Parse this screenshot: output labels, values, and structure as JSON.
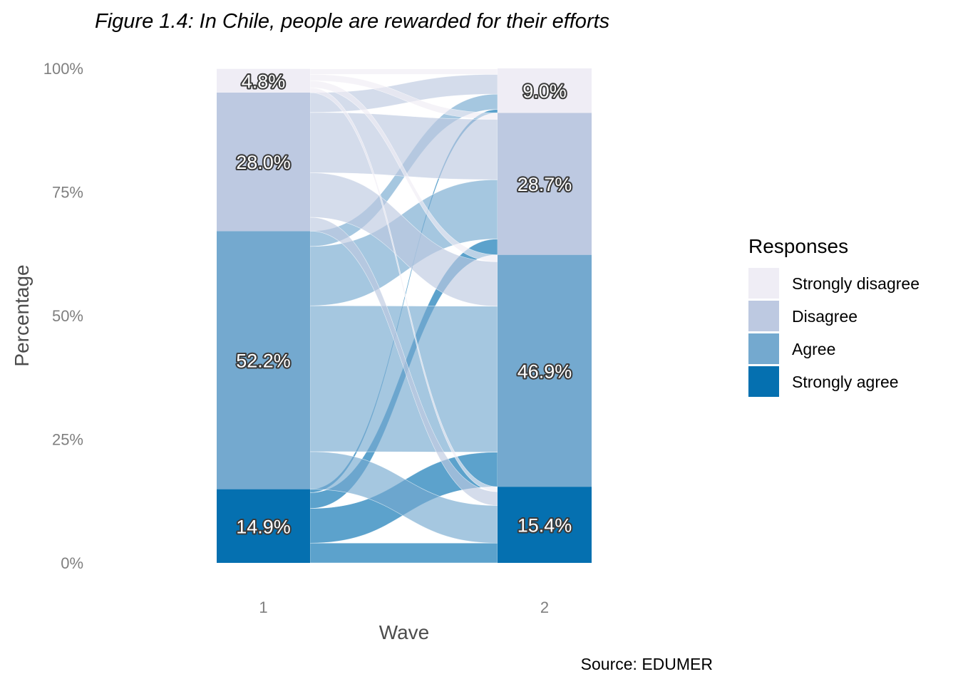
{
  "chart_data": {
    "type": "alluvial",
    "title": "Figure 1.4: In Chile, people are rewarded for their efforts",
    "xlabel": "Wave",
    "ylabel": "Percentage",
    "caption": "Source: EDUMER",
    "x_categories": [
      "1",
      "2"
    ],
    "y_ticks": [
      "0%",
      "25%",
      "50%",
      "75%",
      "100%"
    ],
    "ylim": [
      0,
      100
    ],
    "legend_title": "Responses",
    "legend_position": "right",
    "responses": [
      "Strongly disagree",
      "Disagree",
      "Agree",
      "Strongly agree"
    ],
    "colors": {
      "Strongly disagree": "#efedf5",
      "Disagree": "#bdc9e1",
      "Agree": "#74a9cf",
      "Strongly agree": "#0570b0"
    },
    "stacks": {
      "wave_1": {
        "Strongly agree": 14.9,
        "Agree": 52.2,
        "Disagree": 28.0,
        "Strongly disagree": 4.8
      },
      "wave_2": {
        "Strongly agree": 15.4,
        "Agree": 46.9,
        "Disagree": 28.7,
        "Strongly disagree": 9.0
      }
    },
    "bar_labels": {
      "wave_1": [
        "14.9%",
        "52.2%",
        "28.0%",
        "4.8%"
      ],
      "wave_2": [
        "15.4%",
        "46.9%",
        "28.7%",
        "9.0%"
      ]
    },
    "flows": [
      {
        "from": "Strongly agree",
        "to": "Strongly agree",
        "value": 4.0
      },
      {
        "from": "Strongly agree",
        "to": "Agree",
        "value": 7.0
      },
      {
        "from": "Strongly agree",
        "to": "Disagree",
        "value": 3.2
      },
      {
        "from": "Strongly agree",
        "to": "Strongly disagree",
        "value": 0.7
      },
      {
        "from": "Agree",
        "to": "Strongly agree",
        "value": 7.6
      },
      {
        "from": "Agree",
        "to": "Agree",
        "value": 29.5
      },
      {
        "from": "Agree",
        "to": "Disagree",
        "value": 12.0
      },
      {
        "from": "Agree",
        "to": "Strongly disagree",
        "value": 3.1
      },
      {
        "from": "Disagree",
        "to": "Strongly agree",
        "value": 2.8
      },
      {
        "from": "Disagree",
        "to": "Agree",
        "value": 9.0
      },
      {
        "from": "Disagree",
        "to": "Disagree",
        "value": 12.2
      },
      {
        "from": "Disagree",
        "to": "Strongly disagree",
        "value": 4.0
      },
      {
        "from": "Strongly disagree",
        "to": "Strongly agree",
        "value": 1.0
      },
      {
        "from": "Strongly disagree",
        "to": "Agree",
        "value": 1.4
      },
      {
        "from": "Strongly disagree",
        "to": "Disagree",
        "value": 1.3
      },
      {
        "from": "Strongly disagree",
        "to": "Strongly disagree",
        "value": 1.1
      }
    ]
  }
}
